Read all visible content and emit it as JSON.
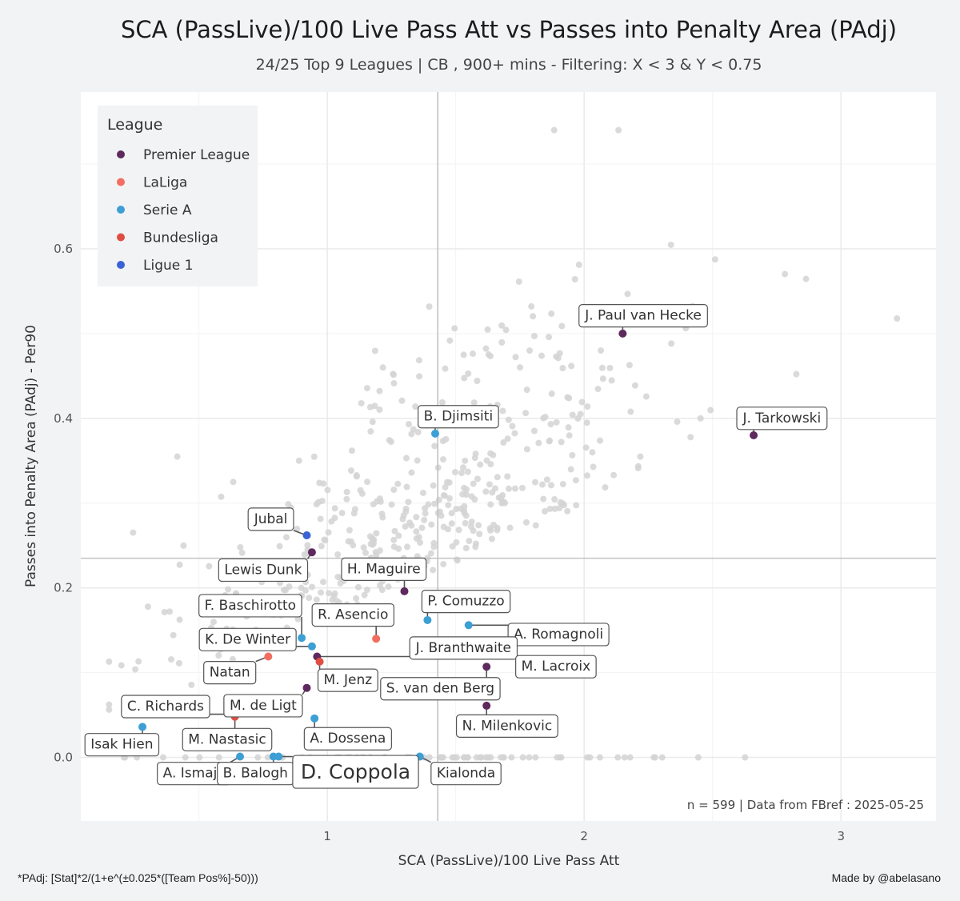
{
  "chart_data": {
    "type": "scatter",
    "title": "SCA (PassLive)/100 Live Pass Att  vs  Passes into Penalty Area (PAdj)",
    "subtitle": "24/25 Top 9 Leagues | CB , 900+ mins - Filtering: X < 3 & Y < 0.75",
    "xlabel": "SCA (PassLive)/100 Live Pass Att",
    "ylabel": "Passes into Penalty Area (PAdj)  -  Per90",
    "xlim": [
      0.04,
      3.37
    ],
    "ylim": [
      -0.075,
      0.785
    ],
    "x_ticks": [
      1,
      2,
      3
    ],
    "x_tick_labels": [
      "1",
      "2",
      "3"
    ],
    "y_ticks": [
      0.0,
      0.2,
      0.4,
      0.6
    ],
    "y_tick_labels": [
      "0.0",
      "0.2",
      "0.4",
      "0.6"
    ],
    "reference_lines": {
      "x": 1.43,
      "y": 0.235
    },
    "legend": {
      "title": "League",
      "position": "top-left",
      "entries": [
        {
          "name": "Premier League",
          "color": "#5e2a5e"
        },
        {
          "name": "LaLiga",
          "color": "#f26e60"
        },
        {
          "name": "Serie A",
          "color": "#3d9fd4"
        },
        {
          "name": "Bundesliga",
          "color": "#e04e42"
        },
        {
          "name": "Ligue 1",
          "color": "#3a63d6"
        }
      ]
    },
    "annotation": "n =  599  | Data from  FBref : 2025-05-25",
    "highlighted": [
      {
        "name": "J. Paul van Hecke",
        "league": "Premier League",
        "x": 2.15,
        "y": 0.5,
        "lx": 2.23,
        "ly": 0.521
      },
      {
        "name": "J. Tarkowski",
        "league": "Premier League",
        "x": 2.66,
        "y": 0.38,
        "lx": 2.77,
        "ly": 0.4
      },
      {
        "name": "B. Djimsiti",
        "league": "Serie A",
        "x": 1.42,
        "y": 0.382,
        "lx": 1.51,
        "ly": 0.402
      },
      {
        "name": "Jubal",
        "league": "Ligue 1",
        "x": 0.92,
        "y": 0.262,
        "lx": 0.78,
        "ly": 0.281
      },
      {
        "name": "Lewis Dunk",
        "league": "Premier League",
        "x": 0.94,
        "y": 0.242,
        "lx": 0.75,
        "ly": 0.221
      },
      {
        "name": "H. Maguire",
        "league": "Premier League",
        "x": 1.3,
        "y": 0.196,
        "lx": 1.22,
        "ly": 0.222
      },
      {
        "name": "P. Comuzzo",
        "league": "Serie A",
        "x": 1.39,
        "y": 0.162,
        "lx": 1.54,
        "ly": 0.184
      },
      {
        "name": "F. Baschirotto",
        "league": "Serie A",
        "x": 0.9,
        "y": 0.141,
        "lx": 0.7,
        "ly": 0.179
      },
      {
        "name": "R. Asencio",
        "league": "LaLiga",
        "x": 1.19,
        "y": 0.14,
        "lx": 1.1,
        "ly": 0.168
      },
      {
        "name": "A. Romagnoli",
        "league": "Serie A",
        "x": 1.55,
        "y": 0.156,
        "lx": 1.9,
        "ly": 0.145
      },
      {
        "name": "K. De Winter",
        "league": "Serie A",
        "x": 0.94,
        "y": 0.131,
        "lx": 0.69,
        "ly": 0.139
      },
      {
        "name": "J. Branthwaite",
        "league": "Premier League",
        "x": 0.96,
        "y": 0.119,
        "lx": 1.53,
        "ly": 0.129
      },
      {
        "name": "M. Lacroix",
        "league": "Premier League",
        "x": 1.69,
        "y": 0.128,
        "lx": 1.89,
        "ly": 0.107
      },
      {
        "name": "Natan",
        "league": "LaLiga",
        "x": 0.77,
        "y": 0.119,
        "lx": 0.62,
        "ly": 0.1
      },
      {
        "name": "M. Jenz",
        "league": "Bundesliga",
        "x": 0.97,
        "y": 0.113,
        "lx": 1.08,
        "ly": 0.091
      },
      {
        "name": "S. van den Berg",
        "league": "Premier League",
        "x": 1.62,
        "y": 0.107,
        "lx": 1.44,
        "ly": 0.081
      },
      {
        "name": "C. Richards",
        "league": "Premier League",
        "x": 0.64,
        "y": 0.051,
        "lx": 0.37,
        "ly": 0.06
      },
      {
        "name": "M. de Ligt",
        "league": "Premier League",
        "x": 0.92,
        "y": 0.082,
        "lx": 0.75,
        "ly": 0.061
      },
      {
        "name": "N. Milenkovic",
        "league": "Premier League",
        "x": 1.62,
        "y": 0.061,
        "lx": 1.7,
        "ly": 0.037
      },
      {
        "name": "A. Dossena",
        "league": "Serie A",
        "x": 0.95,
        "y": 0.046,
        "lx": 1.08,
        "ly": 0.022
      },
      {
        "name": "Isak Hien",
        "league": "Serie A",
        "x": 0.28,
        "y": 0.036,
        "lx": 0.2,
        "ly": 0.015
      },
      {
        "name": "M. Nastasic",
        "league": "Bundesliga",
        "x": 0.64,
        "y": 0.048,
        "lx": 0.61,
        "ly": 0.021
      },
      {
        "name": "A. Ismajli",
        "league": "Serie A",
        "x": 0.66,
        "y": 0.001,
        "lx": 0.48,
        "ly": -0.019
      },
      {
        "name": "B. Balogh",
        "league": "Serie A",
        "x": 0.79,
        "y": 0.001,
        "lx": 0.72,
        "ly": -0.019
      },
      {
        "name": "D. Coppola",
        "league": "Serie A",
        "x": 0.81,
        "y": 0.001,
        "lx": 1.11,
        "ly": -0.017,
        "large": true
      },
      {
        "name": "Kialonda",
        "league": "Serie A",
        "x": 1.36,
        "y": 0.001,
        "lx": 1.54,
        "ly": -0.019
      }
    ]
  },
  "footnote_left": "*PAdj: [Stat]*2/(1+e^(±0.025*([Team Pos%]-50)))",
  "footnote_right": "Made by @abelasano",
  "colors": {
    "background": "#f2f3f5",
    "panel": "#ffffff",
    "grid": "#ebebeb",
    "background_points": "#d3d3d3",
    "reference_line": "#c2c2c2"
  }
}
